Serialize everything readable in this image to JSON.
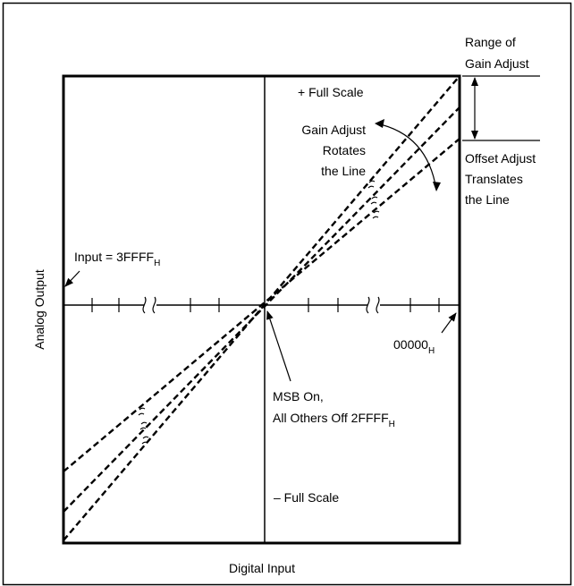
{
  "labels": {
    "range_of_gain_adjust_line1": "Range of",
    "range_of_gain_adjust_line2": "Gain Adjust",
    "plus_full_scale": "+ Full Scale",
    "gain_adjust_line1": "Gain Adjust",
    "gain_adjust_line2": "Rotates",
    "gain_adjust_line3": "the Line",
    "offset_adjust_line1": "Offset Adjust",
    "offset_adjust_line2": "Translates",
    "offset_adjust_line3": "the Line",
    "input_code_main": "Input = 3FFFF",
    "input_code_sub": "H",
    "zero_code_main": "00000",
    "zero_code_sub": "H",
    "msb_line1": "MSB On,",
    "msb_line2_main": "All Others Off 2FFFF",
    "msb_line2_sub": "H",
    "minus_full_scale": "– Full Scale",
    "y_axis_title": "Analog Output",
    "x_axis_title": "Digital Input"
  },
  "colors": {
    "ink": "#000000",
    "background": "#ffffff"
  }
}
